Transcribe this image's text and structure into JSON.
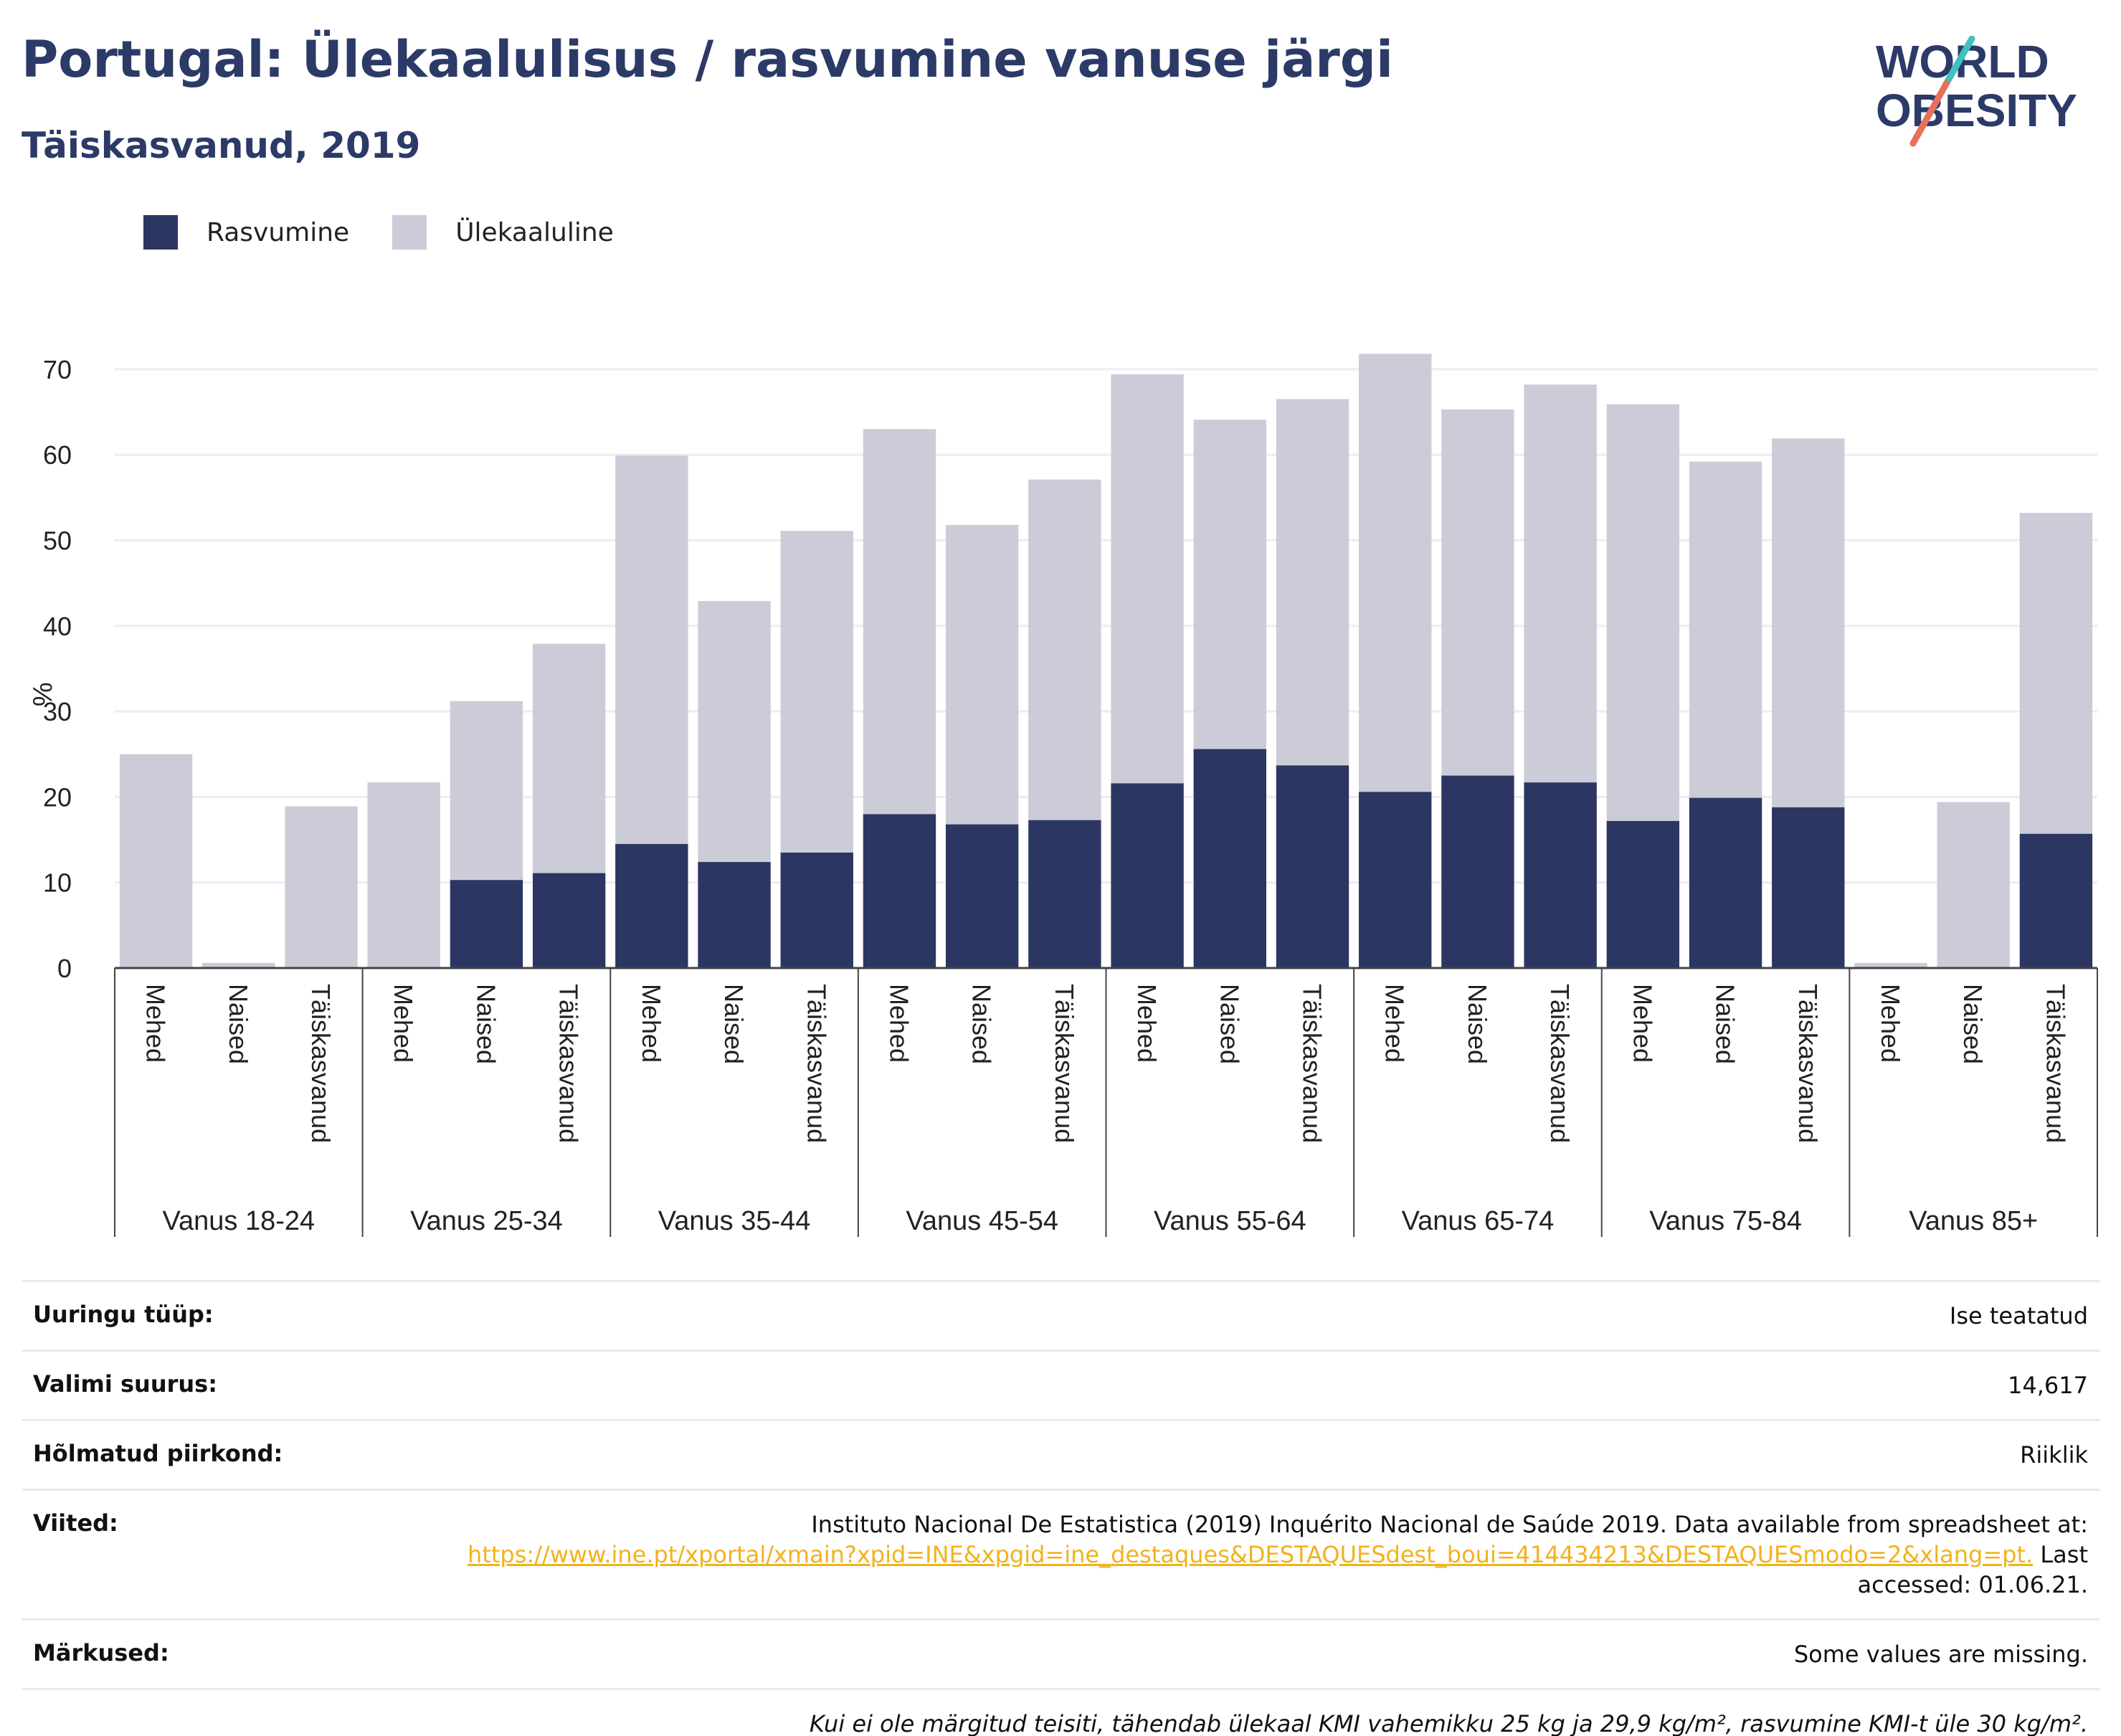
{
  "header": {
    "title": "Portugal: Ülekaalulisus / rasvumine vanuse järgi",
    "subtitle": "Täiskasvanud, 2019",
    "logo_line1": "WORLD",
    "logo_line2": "OBESITY"
  },
  "colors": {
    "obesity": "#2b3663",
    "overweight": "#cbccd8",
    "title": "#2b3a67",
    "link": "#f2b21c"
  },
  "chart_data": {
    "type": "bar",
    "stacked": true,
    "ylabel": "%",
    "ylim": [
      0,
      75
    ],
    "yticks": [
      0,
      10,
      20,
      30,
      40,
      50,
      60,
      70
    ],
    "grid": true,
    "legend": [
      "Rasvumine",
      "Ülekaaluline"
    ],
    "groups": [
      "Vanus 18-24",
      "Vanus 25-34",
      "Vanus 35-44",
      "Vanus 45-54",
      "Vanus 55-64",
      "Vanus 65-74",
      "Vanus 75-84",
      "Vanus 85+"
    ],
    "subcategories": [
      "Mehed",
      "Naised",
      "Täiskasvanud"
    ],
    "series": [
      {
        "name": "Rasvumine",
        "values": [
          0,
          0,
          0,
          0,
          10.3,
          11.1,
          14.5,
          12.4,
          13.5,
          18.0,
          16.8,
          17.3,
          21.6,
          25.6,
          23.7,
          20.6,
          22.5,
          21.7,
          17.2,
          19.9,
          18.8,
          0,
          0,
          15.7
        ]
      },
      {
        "name": "Ülekaaluline",
        "values": [
          25.0,
          0.6,
          18.9,
          21.7,
          20.9,
          26.8,
          45.4,
          30.5,
          37.6,
          45.0,
          35.0,
          39.8,
          47.8,
          38.5,
          42.8,
          51.2,
          42.8,
          46.5,
          48.7,
          39.3,
          43.1,
          0.6,
          19.4,
          37.5
        ]
      }
    ]
  },
  "info": {
    "survey_type_label": "Uuringu tüüp:",
    "survey_type_value": "Ise teatatud",
    "sample_size_label": "Valimi suurus:",
    "sample_size_value": "14,617",
    "area_label": "Hõlmatud piirkond:",
    "area_value": "Riiklik",
    "references_label": "Viited:",
    "references_text": "Instituto Nacional De Estatistica (2019) Inquérito Nacional de Saúde 2019. Data available from spreadsheet at:",
    "references_link": "https://www.ine.pt/xportal/xmain?xpid=INE&xpgid=ine_destaques&DESTAQUESdest_boui=414434213&DESTAQUESmodo=2&xlang=pt.",
    "references_accessed": "Last accessed: 01.06.21.",
    "notes_label": "Märkused:",
    "notes_value": "Some values are missing.",
    "footnote": "Kui ei ole märgitud teisiti, tähendab ülekaal KMI vahemikku 25 kg ja 29,9 kg/m², rasvumine KMI-t üle 30 kg/m²."
  }
}
